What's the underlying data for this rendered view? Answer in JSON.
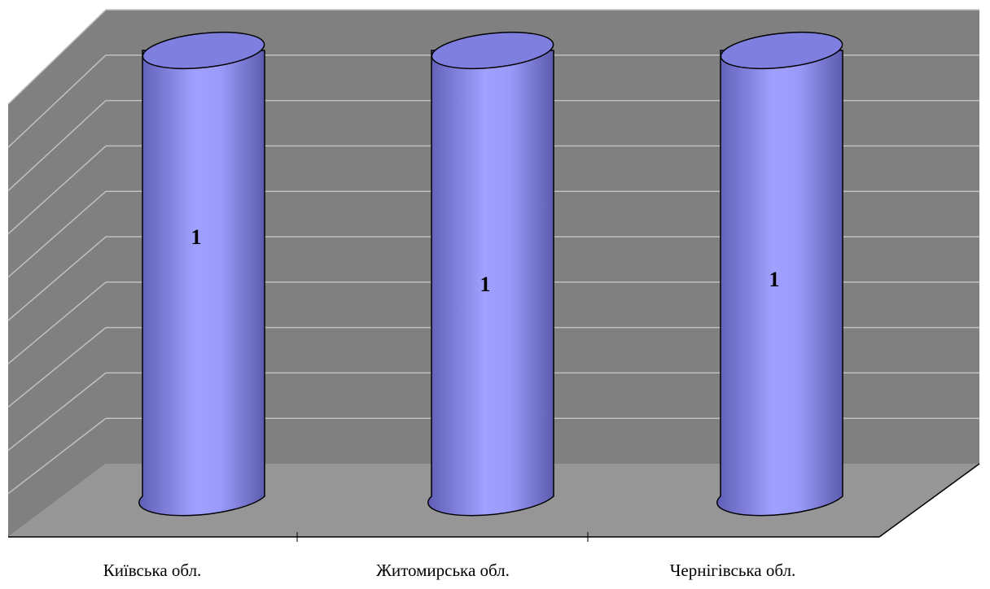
{
  "chart_data": {
    "type": "bar",
    "style": "3d-cylinder",
    "categories": [
      "Київська обл.",
      "Житомирська обл.",
      "Чернігівська обл."
    ],
    "values": [
      1,
      1,
      1
    ],
    "data_labels": [
      "1",
      "1",
      "1"
    ],
    "title": "",
    "xlabel": "",
    "ylabel": "",
    "grid": true,
    "legend": "none",
    "colors": {
      "wall": "#808080",
      "floor": "#969696",
      "gridline": "#c0c0c0",
      "bar_fill": "#9999ff",
      "bar_top": "#7f7fe0",
      "outline": "#000000"
    }
  }
}
